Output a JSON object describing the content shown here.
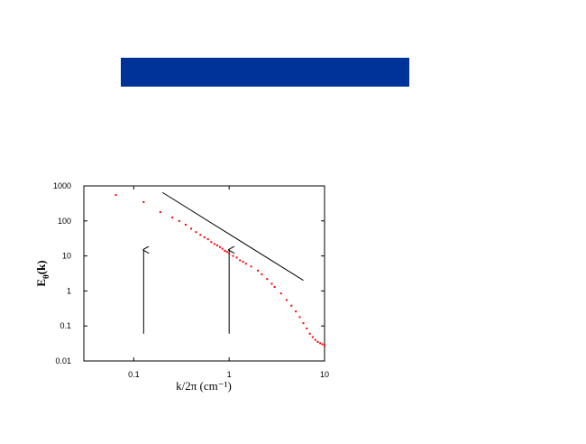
{
  "chart_data": {
    "type": "scatter",
    "x_label": "k/2π  (cm⁻¹)",
    "y_label": {
      "main": "E",
      "sub": "θ",
      "rest": "(k)"
    },
    "x": [
      0.065,
      0.127,
      0.19,
      0.254,
      0.3,
      0.35,
      0.4,
      0.45,
      0.5,
      0.55,
      0.6,
      0.65,
      0.7,
      0.75,
      0.8,
      0.85,
      0.9,
      0.95,
      1.0,
      1.1,
      1.2,
      1.3,
      1.4,
      1.5,
      1.7,
      2.0,
      2.2,
      2.5,
      2.8,
      3.0,
      3.5,
      4.0,
      4.5,
      5.0,
      5.5,
      6.0,
      6.5,
      7.0,
      7.5,
      8.0,
      8.5,
      9.0,
      9.5,
      10.0
    ],
    "series": [
      {
        "color": "#ff0000",
        "values": [
          550,
          344,
          178,
          125,
          100,
          78,
          60,
          48,
          40,
          34,
          30,
          25,
          22,
          20,
          18,
          16,
          14,
          13,
          12,
          10,
          9,
          7.5,
          6.8,
          6,
          5,
          3.8,
          3,
          2.2,
          1.6,
          1.3,
          0.85,
          0.55,
          0.38,
          0.26,
          0.18,
          0.12,
          0.085,
          0.06,
          0.048,
          0.04,
          0.035,
          0.032,
          0.03,
          0.028
        ]
      }
    ],
    "reference_line": {
      "color": "#000000",
      "x": [
        0.2,
        6
      ],
      "y": [
        650,
        2
      ]
    },
    "arrows": [
      {
        "x": 0.127,
        "y": [
          0.06,
          15
        ]
      },
      {
        "x": 1.0,
        "y": [
          0.06,
          15
        ]
      }
    ],
    "xlim": [
      0.03,
      10
    ],
    "ylim": [
      0.01,
      1000
    ],
    "xticks": [
      0.1,
      1,
      10
    ],
    "yticks": [
      1000,
      100,
      10,
      1,
      0.1,
      0.01
    ],
    "xscale": "log",
    "yscale": "log",
    "banner_color": "#003399"
  }
}
